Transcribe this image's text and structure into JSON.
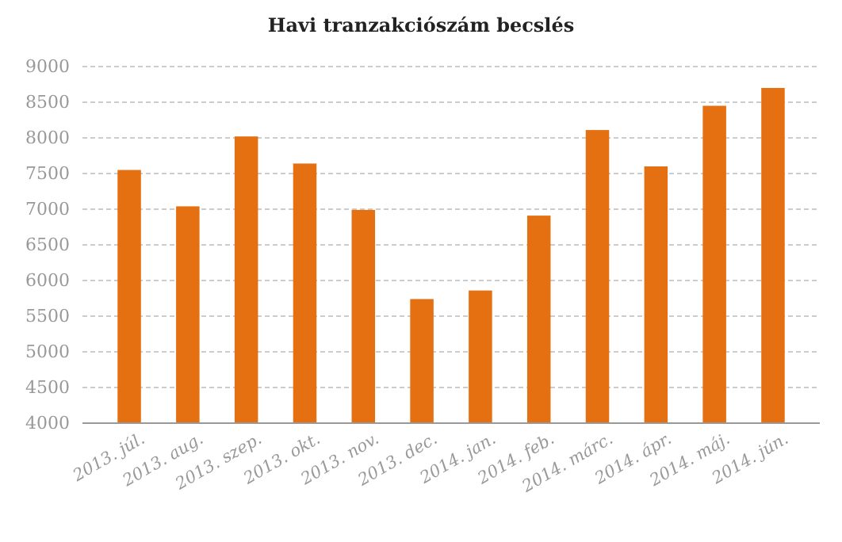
{
  "chart_data": {
    "type": "bar",
    "title": "Havi tranzakciószám becslés",
    "categories": [
      "2013. júl.",
      "2013. aug.",
      "2013. szep.",
      "2013. okt.",
      "2013. nov.",
      "2013. dec.",
      "2014. jan.",
      "2014. feb.",
      "2014. márc.",
      "2014. ápr.",
      "2014. máj.",
      "2014. jún."
    ],
    "values": [
      7550,
      7040,
      8020,
      7640,
      6990,
      5740,
      5860,
      6910,
      8110,
      7600,
      8450,
      8700
    ],
    "color": "#e57012",
    "ylim": [
      4000,
      9000
    ],
    "yticks": [
      4000,
      4500,
      5000,
      5500,
      6000,
      6500,
      7000,
      7500,
      8000,
      8500,
      9000
    ],
    "grid": "y"
  }
}
